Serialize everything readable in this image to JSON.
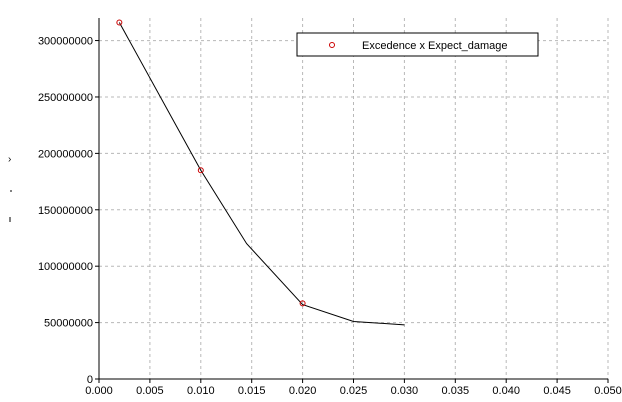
{
  "chart_data": {
    "type": "line",
    "title": "",
    "xlabel": "",
    "ylabel": "",
    "xlim": [
      0,
      0.05
    ],
    "ylim": [
      0,
      320000000
    ],
    "grid": true,
    "legend_position": "top-right",
    "x_ticks": [
      "0.000",
      "0.005",
      "0.010",
      "0.015",
      "0.020",
      "0.025",
      "0.030",
      "0.035",
      "0.040",
      "0.045",
      "0.050"
    ],
    "y_ticks": [
      "0",
      "50000000",
      "100000000",
      "150000000",
      "200000000",
      "250000000",
      "300000000"
    ],
    "series": [
      {
        "name": "Excedence x Expect_damage",
        "marker": "circle",
        "x": [
          0.002,
          0.01,
          0.02
        ],
        "y": [
          316000000,
          185000000,
          67000000
        ],
        "marker_color": "#cc0000"
      },
      {
        "name": "",
        "style": "line",
        "x": [
          0.002,
          0.01,
          0.0145,
          0.02,
          0.025,
          0.03
        ],
        "y": [
          316000000,
          185000000,
          120000000,
          66000000,
          51000000,
          48000000
        ],
        "line_color": "#000000"
      }
    ]
  }
}
